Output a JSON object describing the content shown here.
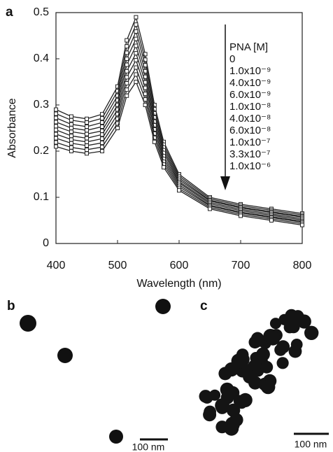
{
  "chart_data": {
    "type": "line",
    "panel_label": "a",
    "xlabel": "Wavelength (nm)",
    "ylabel": "Absorbance",
    "xlim": [
      400,
      800
    ],
    "xticks": [
      400,
      500,
      600,
      700,
      800
    ],
    "ylim": [
      0,
      0.5
    ],
    "yticks": [
      0,
      0.1,
      0.2,
      0.3,
      0.4,
      0.5
    ],
    "legend_title": "PNA [M]",
    "x": [
      400,
      425,
      450,
      475,
      500,
      515,
      530,
      545,
      560,
      575,
      600,
      650,
      700,
      750,
      800
    ],
    "series": [
      {
        "name": "0",
        "color": "#222222",
        "values": [
          0.29,
          0.275,
          0.27,
          0.28,
          0.34,
          0.44,
          0.49,
          0.41,
          0.3,
          0.22,
          0.15,
          0.1,
          0.085,
          0.075,
          0.065
        ]
      },
      {
        "name": "1.0x10⁻⁹",
        "color": "#222222",
        "values": [
          0.281,
          0.267,
          0.262,
          0.271,
          0.33,
          0.427,
          0.474,
          0.398,
          0.291,
          0.214,
          0.146,
          0.097,
          0.082,
          0.072,
          0.062
        ]
      },
      {
        "name": "4.0x10⁻⁹",
        "color": "#222222",
        "values": [
          0.272,
          0.258,
          0.253,
          0.262,
          0.32,
          0.413,
          0.459,
          0.386,
          0.282,
          0.208,
          0.142,
          0.094,
          0.079,
          0.069,
          0.059
        ]
      },
      {
        "name": "6.0x10⁻⁹",
        "color": "#222222",
        "values": [
          0.263,
          0.25,
          0.245,
          0.253,
          0.31,
          0.4,
          0.443,
          0.373,
          0.273,
          0.202,
          0.138,
          0.092,
          0.077,
          0.067,
          0.057
        ]
      },
      {
        "name": "1.0x10⁻⁸",
        "color": "#222222",
        "values": [
          0.254,
          0.242,
          0.237,
          0.244,
          0.3,
          0.387,
          0.428,
          0.361,
          0.264,
          0.196,
          0.134,
          0.089,
          0.074,
          0.064,
          0.054
        ]
      },
      {
        "name": "4.0x10⁻⁸",
        "color": "#222222",
        "values": [
          0.246,
          0.233,
          0.228,
          0.236,
          0.29,
          0.373,
          0.412,
          0.349,
          0.256,
          0.189,
          0.131,
          0.086,
          0.071,
          0.061,
          0.051
        ]
      },
      {
        "name": "6.0x10⁻⁸",
        "color": "#222222",
        "values": [
          0.237,
          0.225,
          0.22,
          0.227,
          0.28,
          0.36,
          0.397,
          0.337,
          0.247,
          0.183,
          0.127,
          0.083,
          0.068,
          0.058,
          0.048
        ]
      },
      {
        "name": "1.0x10⁻⁷",
        "color": "#222222",
        "values": [
          0.228,
          0.217,
          0.212,
          0.218,
          0.27,
          0.347,
          0.381,
          0.324,
          0.238,
          0.177,
          0.123,
          0.081,
          0.066,
          0.056,
          0.046
        ]
      },
      {
        "name": "3.3x10⁻⁷",
        "color": "#222222",
        "values": [
          0.219,
          0.208,
          0.203,
          0.209,
          0.26,
          0.333,
          0.366,
          0.312,
          0.229,
          0.171,
          0.119,
          0.078,
          0.063,
          0.053,
          0.043
        ]
      },
      {
        "name": "1.0x10⁻⁶",
        "color": "#222222",
        "values": [
          0.21,
          0.2,
          0.195,
          0.2,
          0.25,
          0.32,
          0.35,
          0.3,
          0.22,
          0.165,
          0.115,
          0.075,
          0.06,
          0.05,
          0.04
        ]
      }
    ]
  },
  "images": [
    {
      "label": "b",
      "scale_bar": "100 nm"
    },
    {
      "label": "c",
      "scale_bar": "100 nm"
    }
  ]
}
